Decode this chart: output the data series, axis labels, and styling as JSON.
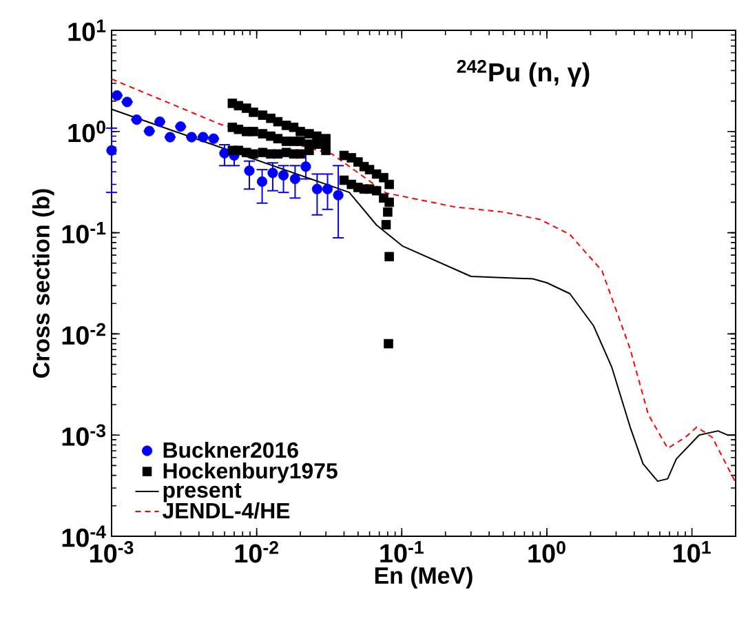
{
  "chart_data": {
    "type": "scatter",
    "title": "$^{242}$Pu (n, γ)",
    "xlabel": "En (MeV)",
    "ylabel": "Cross section (b)",
    "log": "xy",
    "legend": "bottom left",
    "xlim": [
      0.001,
      20
    ],
    "ylim": [
      0.0001,
      10
    ],
    "xticks": [
      {
        "value": 0.001,
        "label": "10$^{-3}$"
      },
      {
        "value": 0.01,
        "label": "10$^{-2}$"
      },
      {
        "value": 0.1,
        "label": "10$^{-1}$"
      },
      {
        "value": 1,
        "label": "10$^{0}$"
      },
      {
        "value": 10,
        "label": "10$^{1}$"
      }
    ],
    "yticks": [
      {
        "value": 0.0001,
        "label": "10$^{-4}$"
      },
      {
        "value": 0.001,
        "label": "10$^{-3}$"
      },
      {
        "value": 0.01,
        "label": "10$^{-2}$"
      },
      {
        "value": 0.1,
        "label": "10$^{-1}$"
      },
      {
        "value": 1,
        "label": "10$^{0}$"
      },
      {
        "value": 10,
        "label": "10$^{1}$"
      }
    ],
    "series": [
      {
        "name": "Buckner2016",
        "type": "scatter",
        "marker": "circle",
        "color": "#0000ff",
        "x": [
          0.001,
          0.00109,
          0.00128,
          0.00149,
          0.00182,
          0.00215,
          0.00253,
          0.00299,
          0.00356,
          0.00427,
          0.00505,
          0.006,
          0.007,
          0.0089,
          0.0109,
          0.0129,
          0.0153,
          0.0184,
          0.0218,
          0.0261,
          0.0308,
          0.0365
        ],
        "values": [
          0.65,
          2.27,
          1.96,
          1.31,
          1.01,
          1.25,
          0.88,
          1.12,
          0.88,
          0.88,
          0.85,
          0.61,
          0.58,
          0.41,
          0.32,
          0.39,
          0.37,
          0.34,
          0.45,
          0.27,
          0.27,
          0.235
        ],
        "errors": [
          [
            0.25,
            1.08
          ],
          null,
          null,
          null,
          null,
          null,
          null,
          null,
          null,
          null,
          null,
          [
            0.46,
            0.74
          ],
          [
            0.46,
            0.69
          ],
          [
            0.27,
            0.51
          ],
          [
            0.196,
            0.42
          ],
          [
            0.26,
            0.49
          ],
          [
            0.25,
            0.46
          ],
          [
            0.22,
            0.46
          ],
          [
            0.34,
            0.6
          ],
          [
            0.15,
            0.38
          ],
          [
            0.17,
            0.38
          ],
          [
            0.089,
            0.46
          ]
        ]
      },
      {
        "name": "Hockenbury1975",
        "type": "scatter",
        "marker": "square",
        "color": "#000000",
        "x": [
          0.0068,
          0.0075,
          0.0085,
          0.0095,
          0.011,
          0.0125,
          0.014,
          0.016,
          0.018,
          0.02,
          0.023,
          0.026,
          0.03,
          0.0068,
          0.0075,
          0.0085,
          0.0095,
          0.011,
          0.0125,
          0.014,
          0.016,
          0.018,
          0.02,
          0.023,
          0.026,
          0.03,
          0.0068,
          0.0075,
          0.0085,
          0.0095,
          0.011,
          0.0125,
          0.014,
          0.016,
          0.018,
          0.02,
          0.023,
          0.026,
          0.03,
          0.04,
          0.045,
          0.05,
          0.055,
          0.06,
          0.067,
          0.075,
          0.082,
          0.04,
          0.045,
          0.05,
          0.055,
          0.06,
          0.067,
          0.075,
          0.082,
          0.08,
          0.078,
          0.082,
          0.081
        ],
        "values": [
          1.9,
          1.8,
          1.7,
          1.55,
          1.45,
          1.35,
          1.25,
          1.15,
          1.1,
          1.0,
          0.95,
          0.9,
          0.85,
          0.65,
          0.65,
          0.62,
          0.6,
          0.62,
          0.6,
          0.6,
          0.62,
          0.6,
          0.6,
          0.65,
          null,
          0.65,
          1.1,
          1.05,
          1.0,
          1.0,
          0.95,
          0.9,
          0.85,
          0.8,
          0.8,
          0.8,
          0.75,
          0.75,
          0.72,
          0.58,
          0.55,
          0.5,
          0.45,
          0.42,
          0.38,
          0.35,
          0.3,
          0.33,
          0.3,
          0.28,
          0.27,
          0.27,
          0.26,
          0.22,
          0.2,
          0.16,
          0.12,
          0.058,
          0.008
        ]
      },
      {
        "name": "present",
        "type": "line",
        "marker": "none",
        "line_style": "solid",
        "color": "#000000",
        "x": [
          0.001,
          0.0435,
          0.067,
          0.101,
          0.3,
          0.8,
          1.0,
          1.44,
          2.1,
          2.8,
          3.75,
          4.6,
          5.8,
          6.8,
          7.8,
          11.2,
          15.1,
          17.6,
          20
        ],
        "values": [
          1.66,
          0.25,
          0.119,
          0.074,
          0.037,
          0.035,
          0.032,
          0.025,
          0.012,
          0.0047,
          0.0012,
          0.00052,
          0.00035,
          0.00037,
          0.00058,
          0.001,
          0.0011,
          0.001,
          0.001
        ]
      },
      {
        "name": "JENDL-4/HE",
        "type": "line",
        "marker": "none",
        "line_style": "dashed",
        "color": "#ff0000",
        "x": [
          0.001,
          0.0056,
          0.033,
          0.078,
          0.23,
          0.5,
          0.9,
          1.44,
          2.4,
          3.75,
          5.0,
          6.8,
          9.0,
          10.8,
          13.8,
          20
        ],
        "values": [
          3.3,
          1.18,
          0.6,
          0.247,
          0.18,
          0.16,
          0.135,
          0.096,
          0.042,
          0.0071,
          0.0016,
          0.00074,
          0.00095,
          0.0012,
          0.00095,
          0.00034
        ]
      }
    ]
  }
}
